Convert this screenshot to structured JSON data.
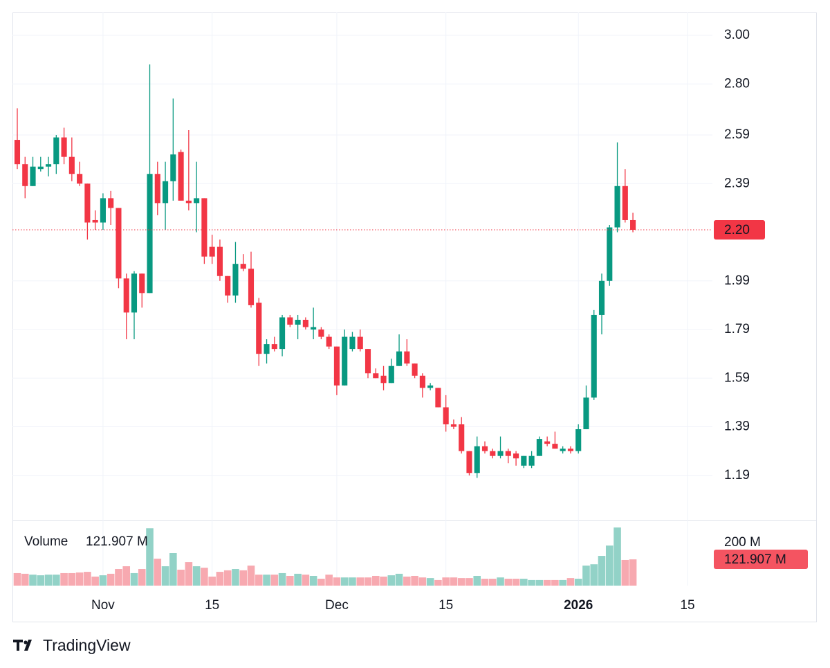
{
  "chart_data": {
    "type": "candlestick",
    "open": [
      2.57,
      2.47,
      2.38,
      2.45,
      2.46,
      2.47,
      2.58,
      2.5,
      2.43,
      2.39,
      2.24,
      2.23,
      2.33,
      2.29,
      2.0,
      1.86,
      2.02,
      1.94,
      2.43,
      2.31,
      2.4,
      2.52,
      2.32,
      2.31,
      2.33,
      2.13,
      2.13,
      2.01,
      1.93,
      2.06,
      2.04,
      1.9,
      1.69,
      1.73,
      1.71,
      1.84,
      1.81,
      1.83,
      1.79,
      1.79,
      1.76,
      1.72,
      1.56,
      1.71,
      1.76,
      1.71,
      1.61,
      1.6,
      1.57,
      1.64,
      1.7,
      1.65,
      1.6,
      1.55,
      1.55,
      1.47,
      1.4,
      1.4,
      1.29,
      1.2,
      1.31,
      1.29,
      1.27,
      1.29,
      1.28,
      1.23,
      1.23,
      1.27,
      1.33,
      1.32,
      1.29,
      1.3,
      1.29,
      1.38,
      1.51,
      1.85,
      1.99,
      2.21,
      2.38,
      2.24
    ],
    "high": [
      2.7,
      2.5,
      2.5,
      2.5,
      2.5,
      2.59,
      2.62,
      2.58,
      2.48,
      2.39,
      2.28,
      2.35,
      2.36,
      2.29,
      2.02,
      2.03,
      2.02,
      2.88,
      2.48,
      2.48,
      2.74,
      2.53,
      2.61,
      2.48,
      2.33,
      2.18,
      2.16,
      2.01,
      2.15,
      2.1,
      2.11,
      1.92,
      1.75,
      1.76,
      1.85,
      1.85,
      1.85,
      1.84,
      1.88,
      1.8,
      1.77,
      1.72,
      1.79,
      1.78,
      1.79,
      1.71,
      1.63,
      1.64,
      1.67,
      1.77,
      1.75,
      1.65,
      1.61,
      1.57,
      1.55,
      1.52,
      1.42,
      1.43,
      1.29,
      1.35,
      1.33,
      1.3,
      1.35,
      1.3,
      1.29,
      1.27,
      1.29,
      1.35,
      1.35,
      1.37,
      1.31,
      1.31,
      1.4,
      1.56,
      1.87,
      2.02,
      2.22,
      2.56,
      2.45,
      2.27
    ],
    "low": [
      2.45,
      2.33,
      2.38,
      2.44,
      2.42,
      2.43,
      2.47,
      2.4,
      2.38,
      2.16,
      2.2,
      2.2,
      2.22,
      1.96,
      1.75,
      1.75,
      1.88,
      1.94,
      2.26,
      2.2,
      2.32,
      2.32,
      2.28,
      2.19,
      2.06,
      2.06,
      1.99,
      1.9,
      1.9,
      2.03,
      1.88,
      1.64,
      1.65,
      1.7,
      1.68,
      1.8,
      1.75,
      1.79,
      1.75,
      1.75,
      1.71,
      1.52,
      1.56,
      1.7,
      1.7,
      1.59,
      1.59,
      1.54,
      1.57,
      1.64,
      1.64,
      1.59,
      1.51,
      1.54,
      1.47,
      1.37,
      1.38,
      1.28,
      1.19,
      1.18,
      1.28,
      1.26,
      1.26,
      1.24,
      1.23,
      1.22,
      1.22,
      1.27,
      1.31,
      1.3,
      1.28,
      1.28,
      1.28,
      1.38,
      1.5,
      1.77,
      1.97,
      2.19,
      2.23,
      2.19
    ],
    "close": [
      2.47,
      2.38,
      2.46,
      2.46,
      2.47,
      2.58,
      2.5,
      2.43,
      2.39,
      2.23,
      2.23,
      2.33,
      2.29,
      2.0,
      1.86,
      2.02,
      1.94,
      2.43,
      2.31,
      2.4,
      2.51,
      2.32,
      2.31,
      2.33,
      2.09,
      2.09,
      2.01,
      1.93,
      2.06,
      2.04,
      1.89,
      1.69,
      1.73,
      1.71,
      1.84,
      1.81,
      1.83,
      1.8,
      1.8,
      1.76,
      1.72,
      1.56,
      1.76,
      1.76,
      1.71,
      1.61,
      1.59,
      1.57,
      1.64,
      1.7,
      1.65,
      1.6,
      1.55,
      1.56,
      1.47,
      1.4,
      1.39,
      1.29,
      1.2,
      1.31,
      1.29,
      1.27,
      1.29,
      1.27,
      1.26,
      1.27,
      1.27,
      1.34,
      1.32,
      1.3,
      1.3,
      1.29,
      1.38,
      1.51,
      1.85,
      1.99,
      2.21,
      2.38,
      2.24,
      2.2
    ],
    "volume": [
      58,
      55,
      51,
      48,
      51,
      51,
      58,
      58,
      61,
      64,
      42,
      48,
      55,
      77,
      90,
      58,
      77,
      266,
      125,
      90,
      151,
      74,
      109,
      90,
      83,
      42,
      64,
      71,
      77,
      71,
      93,
      51,
      51,
      51,
      58,
      45,
      55,
      51,
      45,
      32,
      51,
      38,
      38,
      38,
      38,
      38,
      45,
      42,
      48,
      55,
      42,
      45,
      38,
      35,
      26,
      38,
      38,
      35,
      35,
      45,
      32,
      32,
      38,
      32,
      32,
      32,
      26,
      26,
      26,
      26,
      26,
      35,
      32,
      93,
      99,
      138,
      186,
      270,
      119,
      121.907
    ],
    "price_label": "2.20",
    "volume_title": "Volume",
    "volume_label": "121.907 M",
    "up_color": "#089981",
    "down_color": "#f23645",
    "volume_up_color": "#92d2c7",
    "volume_down_color": "#f7a9b0",
    "last_color": "#f23645",
    "xlim": [
      -0.62,
      89.2
    ],
    "xticks": [
      {
        "value": 11,
        "label": "Nov"
      },
      {
        "value": 25,
        "label": "15"
      },
      {
        "value": 41,
        "label": "Dec"
      },
      {
        "value": 55,
        "label": "15"
      },
      {
        "value": 72,
        "label": "2026"
      },
      {
        "value": 86,
        "label": "15"
      }
    ],
    "ylim": [
      1.01,
      3.094
    ],
    "yticks": [
      {
        "value": 3,
        "label": "3.00"
      },
      {
        "value": 2.8,
        "label": "2.80"
      },
      2.59,
      2.39,
      1.99,
      1.79,
      1.59,
      1.39,
      1.19
    ],
    "volume_ylim": [
      0,
      302
    ],
    "volume_yticks": [
      {
        "value": 200,
        "label": "200 M"
      }
    ],
    "grid": true
  },
  "footer": {
    "brand": "TradingView"
  }
}
